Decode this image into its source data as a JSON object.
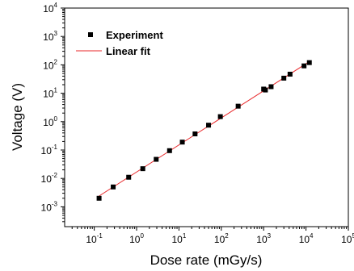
{
  "chart_data": {
    "type": "scatter",
    "title": "",
    "xlabel": "Dose rate (mGy/s)",
    "ylabel": "Voltage (V)",
    "x_scale": "log",
    "y_scale": "log",
    "xlim": [
      0.02,
      100000
    ],
    "ylim": [
      0.0002,
      10000
    ],
    "x_ticks": [
      0.1,
      1,
      10,
      100,
      1000,
      10000,
      100000
    ],
    "x_tick_labels": [
      {
        "base": "10",
        "exp": "-1"
      },
      {
        "base": "10",
        "exp": "0"
      },
      {
        "base": "10",
        "exp": "1"
      },
      {
        "base": "10",
        "exp": "2"
      },
      {
        "base": "10",
        "exp": "3"
      },
      {
        "base": "10",
        "exp": "4"
      },
      {
        "base": "10",
        "exp": "5"
      }
    ],
    "y_ticks": [
      0.001,
      0.01,
      0.1,
      1,
      10,
      100,
      1000,
      10000
    ],
    "y_tick_labels": [
      {
        "base": "10",
        "exp": "-3"
      },
      {
        "base": "10",
        "exp": "-2"
      },
      {
        "base": "10",
        "exp": "-1"
      },
      {
        "base": "10",
        "exp": "0"
      },
      {
        "base": "10",
        "exp": "1"
      },
      {
        "base": "10",
        "exp": "2"
      },
      {
        "base": "10",
        "exp": "3"
      },
      {
        "base": "10",
        "exp": "4"
      }
    ],
    "grid": false,
    "legend_position": "top-left",
    "series": [
      {
        "name": "Experiment",
        "kind": "scatter",
        "marker": "square",
        "color": "#000000",
        "x": [
          0.13,
          0.28,
          0.65,
          1.4,
          2.9,
          6,
          12,
          24,
          50,
          95,
          250,
          1000,
          1100,
          1500,
          3000,
          4200,
          9000,
          12000
        ],
        "y": [
          0.002,
          0.005,
          0.011,
          0.022,
          0.047,
          0.095,
          0.19,
          0.37,
          0.75,
          1.5,
          3.5,
          14,
          13,
          17,
          34,
          47,
          92,
          120
        ]
      },
      {
        "name": "Linear fit",
        "kind": "line",
        "color": "#e8272a",
        "x": [
          0.13,
          12000
        ],
        "y": [
          0.0024,
          130
        ]
      }
    ]
  }
}
